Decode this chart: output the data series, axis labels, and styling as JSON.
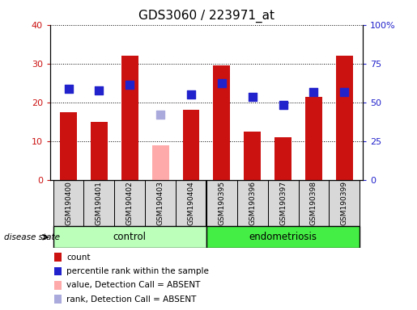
{
  "title": "GDS3060 / 223971_at",
  "samples": [
    "GSM190400",
    "GSM190401",
    "GSM190402",
    "GSM190403",
    "GSM190404",
    "GSM190395",
    "GSM190396",
    "GSM190397",
    "GSM190398",
    "GSM190399"
  ],
  "groups": [
    "control",
    "control",
    "control",
    "control",
    "control",
    "endometriosis",
    "endometriosis",
    "endometriosis",
    "endometriosis",
    "endometriosis"
  ],
  "counts_present": [
    17.5,
    15.0,
    32.0,
    null,
    18.0,
    29.5,
    12.5,
    11.0,
    21.5,
    32.0
  ],
  "counts_absent": [
    null,
    null,
    null,
    9.0,
    null,
    null,
    null,
    null,
    null,
    null
  ],
  "ranks_present": [
    58.5,
    57.5,
    61.5,
    null,
    55.0,
    62.5,
    53.5,
    48.5,
    56.5,
    56.5
  ],
  "ranks_absent": [
    null,
    null,
    null,
    42.0,
    null,
    null,
    null,
    null,
    null,
    null
  ],
  "bar_color_present": "#cc1111",
  "bar_color_absent": "#ffaaaa",
  "dot_color_present": "#2222cc",
  "dot_color_absent": "#aaaadd",
  "control_color": "#bbffbb",
  "endometriosis_color": "#44ee44",
  "sample_box_color": "#d8d8d8",
  "ylim_left": [
    0,
    40
  ],
  "ylim_right": [
    0,
    100
  ],
  "yticks_left": [
    0,
    10,
    20,
    30,
    40
  ],
  "ytick_labels_left": [
    "0",
    "10",
    "20",
    "30",
    "40"
  ],
  "yticks_right": [
    0,
    25,
    50,
    75,
    100
  ],
  "ytick_labels_right": [
    "0",
    "25",
    "50",
    "75",
    "100%"
  ],
  "n_samples": 10,
  "bar_width": 0.55,
  "dot_size": 45,
  "legend_items": [
    {
      "label": "count",
      "color": "#cc1111"
    },
    {
      "label": "percentile rank within the sample",
      "color": "#2222cc"
    },
    {
      "label": "value, Detection Call = ABSENT",
      "color": "#ffaaaa"
    },
    {
      "label": "rank, Detection Call = ABSENT",
      "color": "#aaaadd"
    }
  ]
}
